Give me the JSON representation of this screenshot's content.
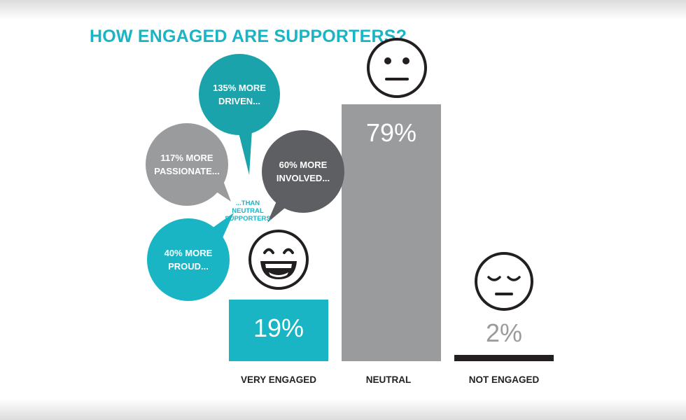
{
  "title": "HOW ENGAGED ARE SUPPORTERS?",
  "bubbles": {
    "driven": "135% MORE\nDRIVEN...",
    "passionate": "117% MORE\nPASSIONATE...",
    "involved": "60% MORE\nINVOLVED...",
    "proud": "40% MORE\nPROUD...",
    "than_note": "...THAN\nNEUTRAL\nSUPPORTERS"
  },
  "colors": {
    "teal": "#19b5c5",
    "dark_teal": "#1aa3ab",
    "gray": "#9a9b9d",
    "dark_gray": "#5e5f62",
    "black": "#231f20"
  },
  "chart_data": {
    "type": "bar",
    "title": "HOW ENGAGED ARE SUPPORTERS?",
    "categories": [
      "VERY ENGAGED",
      "NEUTRAL",
      "NOT ENGAGED"
    ],
    "values": [
      19,
      79,
      2
    ],
    "value_labels": [
      "19%",
      "79%",
      "2%"
    ],
    "colors": [
      "#19b5c5",
      "#9a9b9d",
      "#231f20"
    ],
    "icons": [
      "laughing-face-icon",
      "neutral-face-icon",
      "sleepy-face-icon"
    ],
    "xlabel": "",
    "ylabel": "",
    "ylim": [
      0,
      100
    ],
    "grid": false
  }
}
